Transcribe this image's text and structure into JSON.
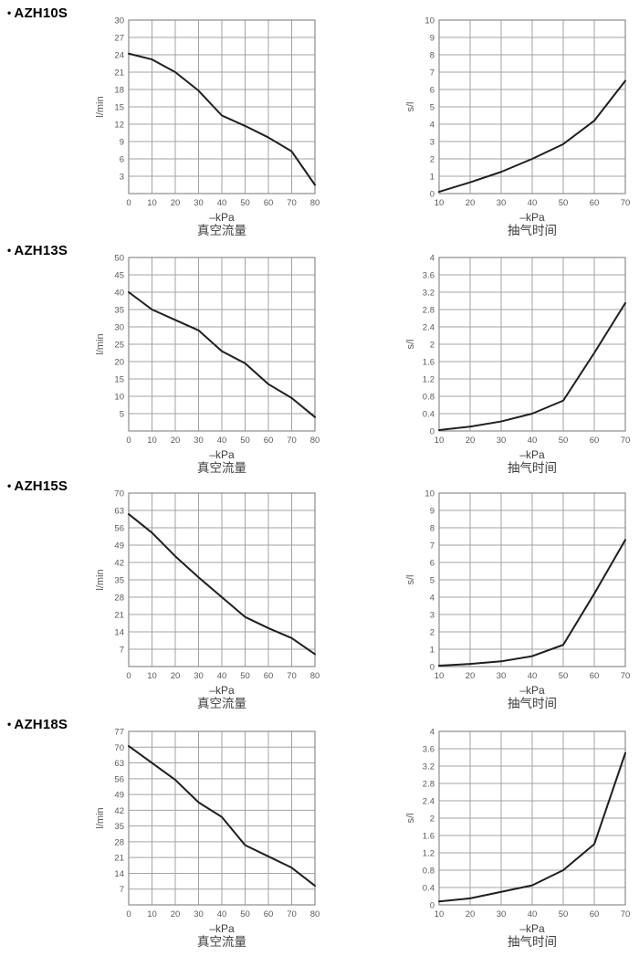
{
  "shared": {
    "bullet": "•",
    "xlabel": "–kPa",
    "flow_caption": "真空流量",
    "time_caption": "抽气时间"
  },
  "colors": {
    "grid": "#a3a3a3",
    "border": "#8c8c8c",
    "curve": "#1f1f1f",
    "tick": "#595959",
    "label": "#3d3d3d",
    "title": "#000000"
  },
  "models": [
    "AZH10S",
    "AZH13S",
    "AZH15S",
    "AZH18S"
  ],
  "chart_data": [
    {
      "model": "AZH10S",
      "kind": "flow",
      "type": "line",
      "caption": "真空流量",
      "xlabel": "–kPa",
      "ylabel": "l/min",
      "xlim": [
        0,
        80
      ],
      "xstep": 10,
      "ylim": [
        0,
        30
      ],
      "ystep": 3,
      "label_y0": false,
      "grid": true,
      "legend": "none",
      "x": [
        0,
        10,
        20,
        30,
        40,
        50,
        60,
        70,
        80
      ],
      "y": [
        24.2,
        23.2,
        21,
        17.8,
        13.5,
        11.7,
        9.7,
        7.3,
        1.5
      ]
    },
    {
      "model": "AZH10S",
      "kind": "time",
      "type": "line",
      "caption": "抽气时间",
      "xlabel": "–kPa",
      "ylabel": "s/l",
      "xlim": [
        10,
        70
      ],
      "xstep": 10,
      "ylim": [
        0,
        10
      ],
      "ystep": 1,
      "label_y0": true,
      "grid": true,
      "legend": "none",
      "x": [
        10,
        20,
        30,
        40,
        50,
        60,
        70
      ],
      "y": [
        0.1,
        0.65,
        1.25,
        2,
        2.85,
        4.2,
        6.5
      ]
    },
    {
      "model": "AZH13S",
      "kind": "flow",
      "type": "line",
      "caption": "真空流量",
      "xlabel": "–kPa",
      "ylabel": "l/min",
      "xlim": [
        0,
        80
      ],
      "xstep": 10,
      "ylim": [
        0,
        50
      ],
      "ystep": 5,
      "label_y0": false,
      "grid": true,
      "legend": "none",
      "x": [
        0,
        10,
        20,
        30,
        40,
        50,
        60,
        70,
        80
      ],
      "y": [
        40,
        35,
        32,
        29,
        23,
        19.5,
        13.5,
        9.5,
        4
      ]
    },
    {
      "model": "AZH13S",
      "kind": "time",
      "type": "line",
      "caption": "抽气时间",
      "xlabel": "–kPa",
      "ylabel": "s/l",
      "xlim": [
        10,
        70
      ],
      "xstep": 10,
      "ylim": [
        0,
        4
      ],
      "ystep": 0.4,
      "label_y0": true,
      "grid": true,
      "legend": "none",
      "x": [
        10,
        20,
        30,
        40,
        50,
        60,
        70
      ],
      "y": [
        0.02,
        0.1,
        0.22,
        0.4,
        0.7,
        1.8,
        2.95
      ]
    },
    {
      "model": "AZH15S",
      "kind": "flow",
      "type": "line",
      "caption": "真空流量",
      "xlabel": "–kPa",
      "ylabel": "l/min",
      "xlim": [
        0,
        80
      ],
      "xstep": 10,
      "ylim": [
        0,
        70
      ],
      "ystep": 7,
      "label_y0": false,
      "grid": true,
      "legend": "none",
      "x": [
        0,
        10,
        20,
        30,
        40,
        50,
        60,
        70,
        80
      ],
      "y": [
        61.5,
        54,
        44.5,
        36,
        28,
        20,
        15.5,
        11.5,
        5
      ]
    },
    {
      "model": "AZH15S",
      "kind": "time",
      "type": "line",
      "caption": "抽气时间",
      "xlabel": "–kPa",
      "ylabel": "s/l",
      "xlim": [
        10,
        70
      ],
      "xstep": 10,
      "ylim": [
        0,
        10
      ],
      "ystep": 1,
      "label_y0": true,
      "grid": true,
      "legend": "none",
      "x": [
        10,
        20,
        30,
        40,
        50,
        60,
        70
      ],
      "y": [
        0.05,
        0.15,
        0.3,
        0.6,
        1.25,
        4.2,
        7.3
      ]
    },
    {
      "model": "AZH18S",
      "kind": "flow",
      "type": "line",
      "caption": "真空流量",
      "xlabel": "–kPa",
      "ylabel": "l/min",
      "xlim": [
        0,
        80
      ],
      "xstep": 10,
      "ylim": [
        0,
        77
      ],
      "ystep": 7,
      "label_y0": false,
      "grid": true,
      "legend": "none",
      "x": [
        0,
        10,
        20,
        30,
        40,
        50,
        60,
        70,
        80
      ],
      "y": [
        70.5,
        63,
        55.5,
        45.5,
        39,
        26.5,
        21.5,
        16.5,
        8.5
      ]
    },
    {
      "model": "AZH18S",
      "kind": "time",
      "type": "line",
      "caption": "抽气时间",
      "xlabel": "–kPa",
      "ylabel": "s/l",
      "xlim": [
        10,
        70
      ],
      "xstep": 10,
      "ylim": [
        0,
        4
      ],
      "ystep": 0.4,
      "label_y0": true,
      "grid": true,
      "legend": "none",
      "x": [
        10,
        20,
        30,
        40,
        50,
        60,
        70
      ],
      "y": [
        0.08,
        0.15,
        0.3,
        0.45,
        0.8,
        1.4,
        3.5
      ]
    }
  ]
}
